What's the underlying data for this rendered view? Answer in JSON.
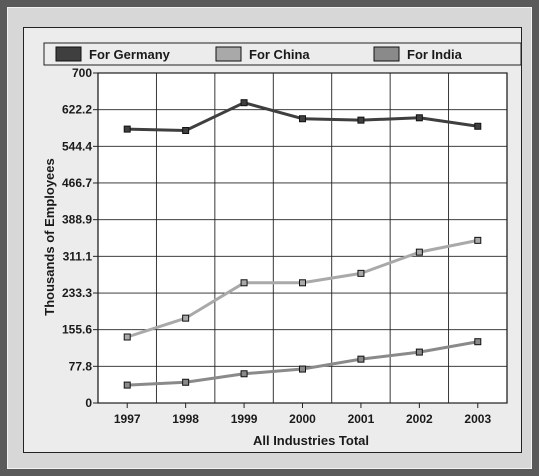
{
  "chart_data": {
    "type": "line",
    "title": "",
    "xlabel": "All Industries Total",
    "ylabel": "Thousands of Employees",
    "categories": [
      "1997",
      "1998",
      "1999",
      "2000",
      "2001",
      "2002",
      "2003"
    ],
    "yticks": [
      "0",
      "77.8",
      "155.6",
      "233.3",
      "311.1",
      "388.9",
      "466.7",
      "544.4",
      "622.2",
      "700"
    ],
    "ylim": [
      0,
      700
    ],
    "grid": true,
    "legend_position": "top",
    "series": [
      {
        "name": "For Germany",
        "values": [
          581,
          578,
          637,
          603,
          600,
          605,
          587
        ],
        "color": "#3f3f3f"
      },
      {
        "name": "For China",
        "values": [
          140,
          180,
          255,
          255,
          275,
          320,
          345
        ],
        "color": "#a9a9a9"
      },
      {
        "name": "For India",
        "values": [
          38,
          44,
          62,
          72,
          93,
          108,
          130
        ],
        "color": "#8a8a8a"
      }
    ]
  }
}
